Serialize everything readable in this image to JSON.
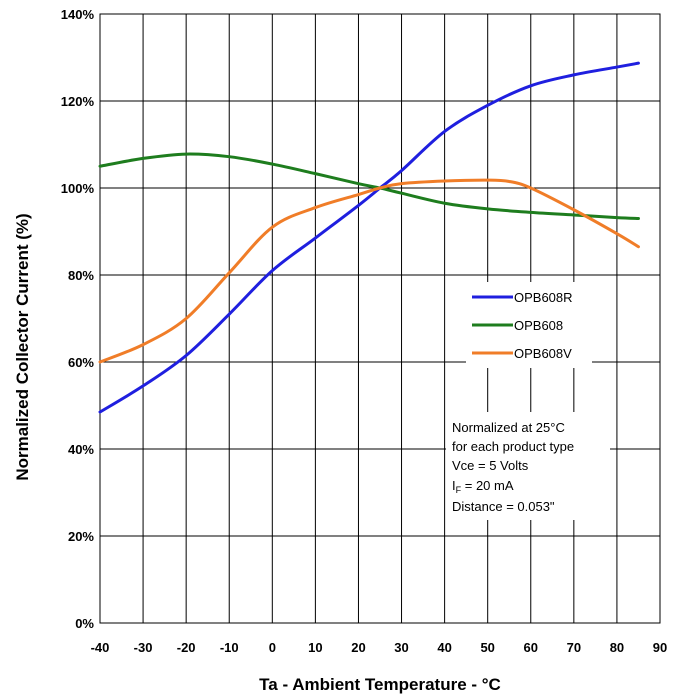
{
  "chart_data": {
    "type": "line",
    "xlabel": "Ta - Ambient Temperature - °C",
    "ylabel": "Normalized Collector Current (%)",
    "xlim": [
      -40,
      90
    ],
    "ylim": [
      0,
      140
    ],
    "x_ticks": [
      "-40",
      "-30",
      "-20",
      "-10",
      "0",
      "10",
      "20",
      "30",
      "40",
      "50",
      "60",
      "70",
      "80",
      "90"
    ],
    "y_ticks": [
      "0%",
      "20%",
      "40%",
      "60%",
      "80%",
      "100%",
      "120%",
      "140%"
    ],
    "grid": true,
    "legend_position": "right-middle",
    "series": [
      {
        "name": "OPB608R",
        "color": "#1f1fdf",
        "x": [
          -40,
          -30,
          -20,
          -10,
          0,
          10,
          20,
          25,
          30,
          40,
          50,
          60,
          70,
          80,
          85
        ],
        "y": [
          48.5,
          54.5,
          61.5,
          71,
          81,
          88.5,
          96,
          100,
          104,
          113,
          119,
          123.5,
          126,
          127.8,
          128.7
        ]
      },
      {
        "name": "OPB608",
        "color": "#1e7d1e",
        "x": [
          -40,
          -30,
          -20,
          -10,
          0,
          10,
          20,
          25,
          30,
          40,
          50,
          60,
          70,
          80,
          85
        ],
        "y": [
          105,
          106.8,
          107.8,
          107.2,
          105.5,
          103.3,
          101,
          100,
          98.8,
          96.5,
          95.2,
          94.4,
          93.8,
          93.2,
          93
        ]
      },
      {
        "name": "OPB608V",
        "color": "#f07d28",
        "x": [
          -40,
          -30,
          -20,
          -10,
          0,
          10,
          20,
          25,
          30,
          40,
          50,
          55,
          60,
          70,
          80,
          85
        ],
        "y": [
          60,
          64,
          70,
          80.5,
          91,
          95.5,
          98.5,
          100,
          101,
          101.6,
          101.8,
          101.5,
          100,
          95,
          89.5,
          86.5
        ]
      }
    ],
    "annotation": {
      "line1": "Normalized at 25°C",
      "line2": "for each product type",
      "line3": "Vce = 5 Volts",
      "line4_main": "I",
      "line4_sub": "F",
      "line4_rest": " = 20 mA",
      "line5": "Distance = 0.053\""
    }
  }
}
